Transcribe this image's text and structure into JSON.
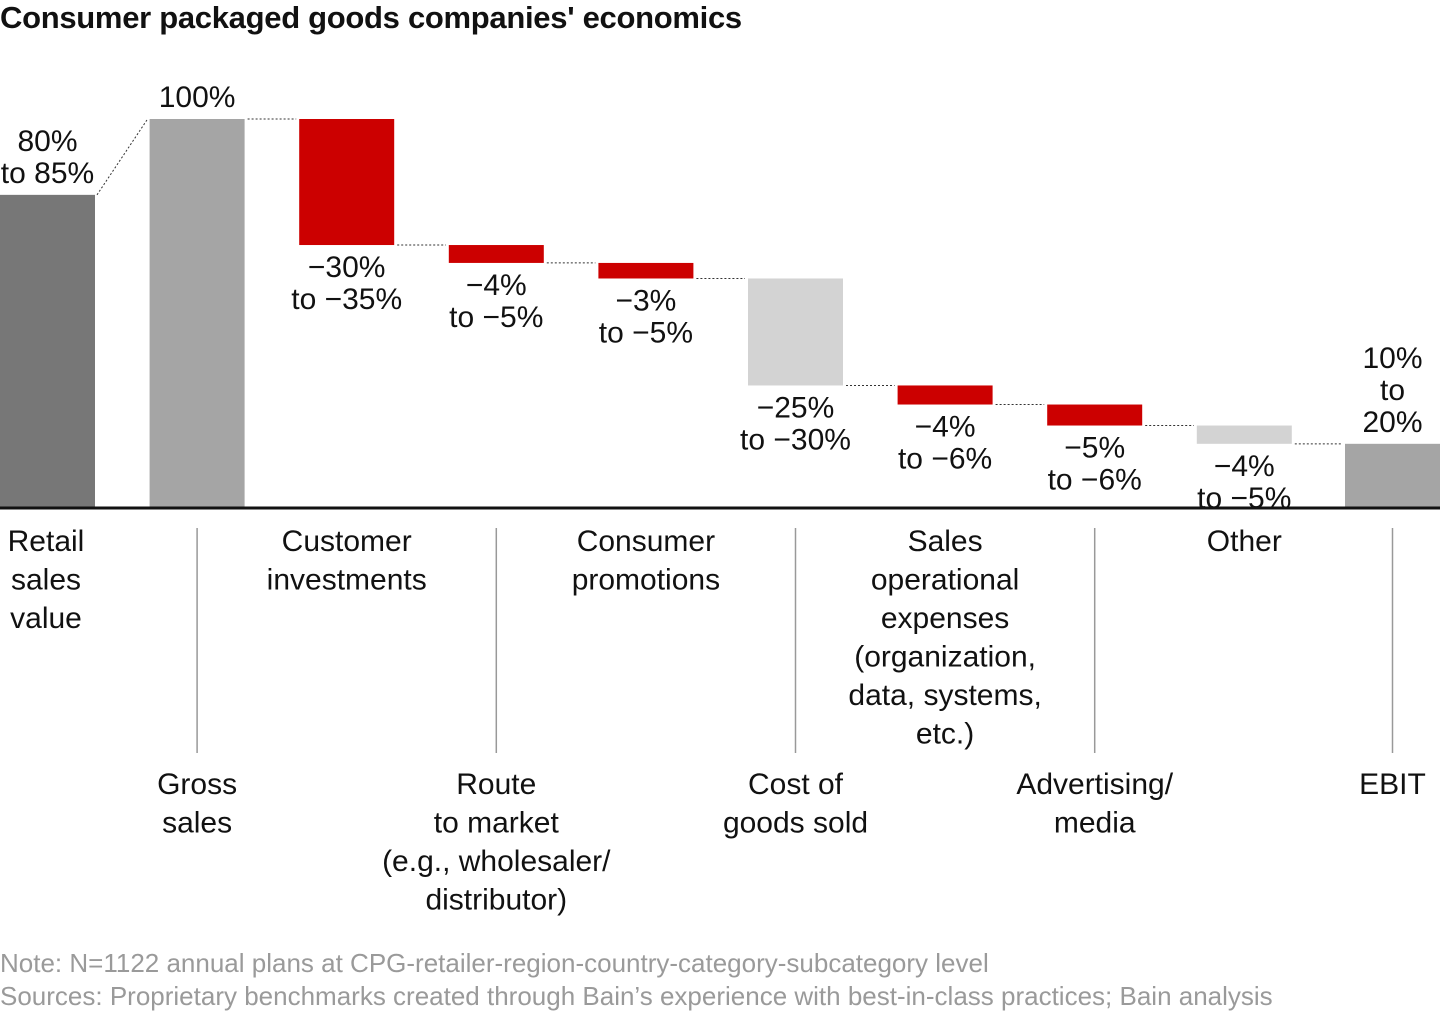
{
  "chart_data": {
    "type": "waterfall",
    "title": "Consumer packaged goods companies' economics",
    "ylim": [
      0,
      100
    ],
    "unit": "% of gross sales",
    "colors": {
      "total_dark": "#777777",
      "total": "#a5a5a5",
      "negative": "#cc0000",
      "cogs": "#d3d3d3",
      "other": "#d3d3d3"
    },
    "bars": [
      {
        "category": [
          "Retail",
          "sales",
          "value"
        ],
        "row": "top",
        "start": 0,
        "end": 80.5,
        "label": [
          "80%",
          "to 85%"
        ],
        "label_pos": "above",
        "color": "#777777"
      },
      {
        "category": [
          "Gross",
          "sales"
        ],
        "row": "bottom",
        "start": 0,
        "end": 100,
        "label": [
          "100%"
        ],
        "label_pos": "above",
        "color": "#a5a5a5"
      },
      {
        "category": [
          "Customer",
          "investments"
        ],
        "row": "top",
        "start": 100,
        "end": 67.6,
        "label": [
          "−30%",
          "to −35%"
        ],
        "label_pos": "below",
        "color": "#cc0000"
      },
      {
        "category": [
          "Route",
          "to market",
          "(e.g., wholesaler/",
          "distributor)"
        ],
        "row": "bottom",
        "start": 67.6,
        "end": 63,
        "label": [
          "−4%",
          "to −5%"
        ],
        "label_pos": "below",
        "color": "#cc0000"
      },
      {
        "category": [
          "Consumer",
          "promotions"
        ],
        "row": "top",
        "start": 63,
        "end": 59,
        "label": [
          "−3%",
          "to −5%"
        ],
        "label_pos": "below",
        "color": "#cc0000"
      },
      {
        "category": [
          "Cost of",
          "goods sold"
        ],
        "row": "bottom",
        "start": 59,
        "end": 31.5,
        "label": [
          "−25%",
          "to −30%"
        ],
        "label_pos": "below",
        "color": "#d3d3d3"
      },
      {
        "category": [
          "Sales",
          "operational",
          "expenses",
          "(organization,",
          "data, systems,",
          "etc.)"
        ],
        "row": "top",
        "start": 31.5,
        "end": 26.6,
        "label": [
          "−4%",
          "to −6%"
        ],
        "label_pos": "below",
        "color": "#cc0000"
      },
      {
        "category": [
          "Advertising/",
          "media"
        ],
        "row": "bottom",
        "start": 26.6,
        "end": 21.2,
        "label": [
          "−5%",
          "to −6%"
        ],
        "label_pos": "below",
        "color": "#cc0000"
      },
      {
        "category": [
          "Other"
        ],
        "row": "top",
        "start": 21.2,
        "end": 16.5,
        "label": [
          "−4%",
          "to −5%"
        ],
        "label_pos": "below",
        "color": "#d3d3d3"
      },
      {
        "category": [
          "EBIT"
        ],
        "row": "bottom",
        "start": 0,
        "end": 16.5,
        "label": [
          "10%",
          "to",
          "20%"
        ],
        "label_pos": "above",
        "color": "#a5a5a5"
      }
    ]
  },
  "notes": {
    "note": "Note: N=1122 annual plans at CPG-retailer-region-country-category-subcategory level",
    "sources": "Sources: Proprietary benchmarks created through Bain’s experience with best-in-class practices; Bain analysis"
  }
}
